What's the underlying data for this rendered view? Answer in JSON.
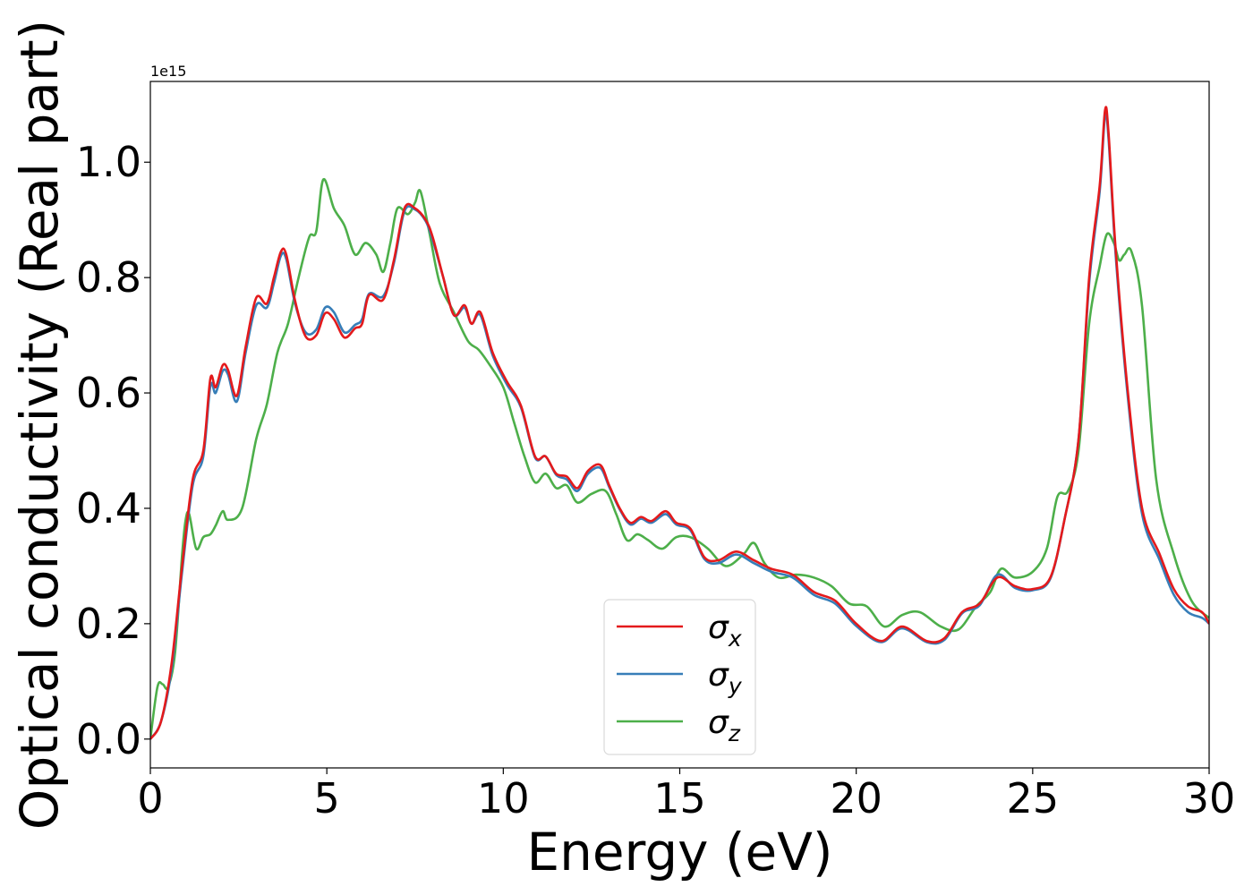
{
  "chart_data": {
    "type": "line",
    "xlabel": "Energy (eV)",
    "ylabel": "Optical conductivity (Real part)",
    "y_offset_label": "1e15",
    "xlim": [
      0,
      30
    ],
    "ylim": [
      -0.05,
      1.14
    ],
    "xticks": [
      0,
      5,
      10,
      15,
      20,
      25,
      30
    ],
    "xtick_labels": [
      "0",
      "5",
      "10",
      "15",
      "20",
      "25",
      "30"
    ],
    "yticks": [
      0.0,
      0.2,
      0.4,
      0.6,
      0.8,
      1.0
    ],
    "ytick_labels": [
      "0.0",
      "0.2",
      "0.4",
      "0.6",
      "0.8",
      "1.0"
    ],
    "grid": false,
    "legend_position": "bottom-center",
    "series": [
      {
        "name": "σx",
        "legend_main": "σ",
        "legend_sub": "x",
        "color": "#e41a1c",
        "x": [
          0,
          0.3,
          0.6,
          0.9,
          1.2,
          1.5,
          1.7,
          1.85,
          2.05,
          2.2,
          2.45,
          2.7,
          3.0,
          3.3,
          3.5,
          3.7,
          3.85,
          4.1,
          4.4,
          4.7,
          4.95,
          5.2,
          5.5,
          5.8,
          6.0,
          6.2,
          6.6,
          6.9,
          7.2,
          7.5,
          7.8,
          8.0,
          8.3,
          8.6,
          8.9,
          9.1,
          9.35,
          9.7,
          10.1,
          10.5,
          10.9,
          11.2,
          11.5,
          11.8,
          12.1,
          12.4,
          12.75,
          13.0,
          13.3,
          13.6,
          13.9,
          14.2,
          14.6,
          14.9,
          15.3,
          15.7,
          16.1,
          16.6,
          17.1,
          17.6,
          18.2,
          18.8,
          19.4,
          20.0,
          20.7,
          21.3,
          22.0,
          22.5,
          23.0,
          23.5,
          24.0,
          24.5,
          25.0,
          25.5,
          25.9,
          26.3,
          26.6,
          26.9,
          27.05,
          27.15,
          27.35,
          27.7,
          28.1,
          28.6,
          29.0,
          29.4,
          29.8,
          30.0
        ],
        "y": [
          0.0,
          0.03,
          0.13,
          0.3,
          0.45,
          0.5,
          0.625,
          0.61,
          0.648,
          0.64,
          0.595,
          0.68,
          0.765,
          0.755,
          0.8,
          0.845,
          0.84,
          0.76,
          0.698,
          0.7,
          0.738,
          0.728,
          0.696,
          0.712,
          0.72,
          0.77,
          0.762,
          0.83,
          0.92,
          0.92,
          0.9,
          0.87,
          0.8,
          0.735,
          0.752,
          0.72,
          0.74,
          0.67,
          0.62,
          0.578,
          0.49,
          0.49,
          0.46,
          0.455,
          0.435,
          0.465,
          0.475,
          0.44,
          0.4,
          0.375,
          0.385,
          0.378,
          0.395,
          0.375,
          0.365,
          0.315,
          0.31,
          0.325,
          0.31,
          0.295,
          0.285,
          0.255,
          0.24,
          0.2,
          0.17,
          0.195,
          0.17,
          0.175,
          0.22,
          0.235,
          0.28,
          0.265,
          0.26,
          0.28,
          0.38,
          0.52,
          0.8,
          0.96,
          1.09,
          1.05,
          0.85,
          0.6,
          0.4,
          0.32,
          0.26,
          0.23,
          0.22,
          0.2
        ]
      },
      {
        "name": "σy",
        "legend_main": "σ",
        "legend_sub": "y",
        "color": "#377eb8",
        "x": [
          0,
          0.3,
          0.6,
          0.9,
          1.2,
          1.5,
          1.7,
          1.85,
          2.05,
          2.2,
          2.45,
          2.7,
          3.0,
          3.3,
          3.5,
          3.7,
          3.85,
          4.1,
          4.4,
          4.7,
          4.95,
          5.2,
          5.5,
          5.8,
          6.0,
          6.2,
          6.6,
          6.9,
          7.2,
          7.5,
          7.8,
          8.0,
          8.3,
          8.6,
          8.9,
          9.1,
          9.35,
          9.7,
          10.1,
          10.5,
          10.9,
          11.2,
          11.5,
          11.8,
          12.1,
          12.4,
          12.75,
          13.0,
          13.3,
          13.6,
          13.9,
          14.2,
          14.6,
          14.9,
          15.3,
          15.7,
          16.1,
          16.6,
          17.1,
          17.6,
          18.2,
          18.8,
          19.4,
          20.0,
          20.7,
          21.3,
          22.0,
          22.5,
          23.0,
          23.5,
          24.0,
          24.5,
          25.0,
          25.5,
          25.9,
          26.3,
          26.6,
          26.9,
          27.05,
          27.15,
          27.35,
          27.7,
          28.1,
          28.6,
          29.0,
          29.4,
          29.8,
          30.0
        ],
        "y": [
          0.0,
          0.03,
          0.12,
          0.29,
          0.44,
          0.49,
          0.612,
          0.6,
          0.638,
          0.632,
          0.585,
          0.67,
          0.752,
          0.748,
          0.79,
          0.838,
          0.832,
          0.755,
          0.705,
          0.71,
          0.748,
          0.74,
          0.705,
          0.718,
          0.728,
          0.772,
          0.768,
          0.825,
          0.915,
          0.918,
          0.898,
          0.865,
          0.8,
          0.735,
          0.748,
          0.72,
          0.735,
          0.665,
          0.615,
          0.575,
          0.488,
          0.49,
          0.458,
          0.45,
          0.43,
          0.46,
          0.47,
          0.437,
          0.398,
          0.372,
          0.382,
          0.375,
          0.39,
          0.372,
          0.362,
          0.312,
          0.305,
          0.32,
          0.305,
          0.29,
          0.28,
          0.25,
          0.235,
          0.196,
          0.168,
          0.192,
          0.168,
          0.172,
          0.218,
          0.232,
          0.285,
          0.262,
          0.258,
          0.278,
          0.38,
          0.52,
          0.79,
          0.95,
          1.08,
          1.04,
          0.84,
          0.59,
          0.39,
          0.31,
          0.25,
          0.22,
          0.21,
          0.2
        ]
      },
      {
        "name": "σz",
        "legend_main": "σ",
        "legend_sub": "z",
        "color": "#4daf4a",
        "x": [
          0,
          0.2,
          0.35,
          0.5,
          0.7,
          0.9,
          1.0,
          1.1,
          1.3,
          1.5,
          1.7,
          1.85,
          2.05,
          2.2,
          2.6,
          3.0,
          3.3,
          3.6,
          3.9,
          4.2,
          4.5,
          4.7,
          4.9,
          5.2,
          5.5,
          5.8,
          6.1,
          6.4,
          6.6,
          6.8,
          7.0,
          7.3,
          7.5,
          7.65,
          7.9,
          8.2,
          8.6,
          9.0,
          9.3,
          9.6,
          10.0,
          10.3,
          10.6,
          10.9,
          11.2,
          11.5,
          11.8,
          12.1,
          12.5,
          12.9,
          13.2,
          13.5,
          13.8,
          14.1,
          14.5,
          14.9,
          15.3,
          15.8,
          16.3,
          16.8,
          17.1,
          17.4,
          17.8,
          18.3,
          18.8,
          19.3,
          19.8,
          20.3,
          20.8,
          21.3,
          21.8,
          22.4,
          22.9,
          23.4,
          23.8,
          24.1,
          24.5,
          25.0,
          25.4,
          25.7,
          26.0,
          26.3,
          26.6,
          26.9,
          27.1,
          27.3,
          27.45,
          27.6,
          27.8,
          28.1,
          28.5,
          29.0,
          29.5,
          30.0
        ],
        "y": [
          0.0,
          0.09,
          0.095,
          0.09,
          0.15,
          0.32,
          0.38,
          0.39,
          0.33,
          0.35,
          0.355,
          0.37,
          0.395,
          0.38,
          0.4,
          0.52,
          0.58,
          0.67,
          0.72,
          0.8,
          0.87,
          0.88,
          0.97,
          0.92,
          0.89,
          0.84,
          0.86,
          0.84,
          0.81,
          0.86,
          0.92,
          0.91,
          0.93,
          0.95,
          0.88,
          0.79,
          0.74,
          0.69,
          0.675,
          0.65,
          0.61,
          0.55,
          0.49,
          0.445,
          0.46,
          0.435,
          0.44,
          0.41,
          0.425,
          0.43,
          0.39,
          0.345,
          0.355,
          0.345,
          0.33,
          0.35,
          0.35,
          0.33,
          0.3,
          0.32,
          0.34,
          0.305,
          0.28,
          0.285,
          0.28,
          0.265,
          0.235,
          0.23,
          0.195,
          0.215,
          0.22,
          0.195,
          0.19,
          0.23,
          0.255,
          0.295,
          0.28,
          0.29,
          0.33,
          0.42,
          0.43,
          0.5,
          0.72,
          0.82,
          0.875,
          0.86,
          0.83,
          0.84,
          0.845,
          0.75,
          0.45,
          0.32,
          0.24,
          0.21
        ]
      }
    ]
  }
}
